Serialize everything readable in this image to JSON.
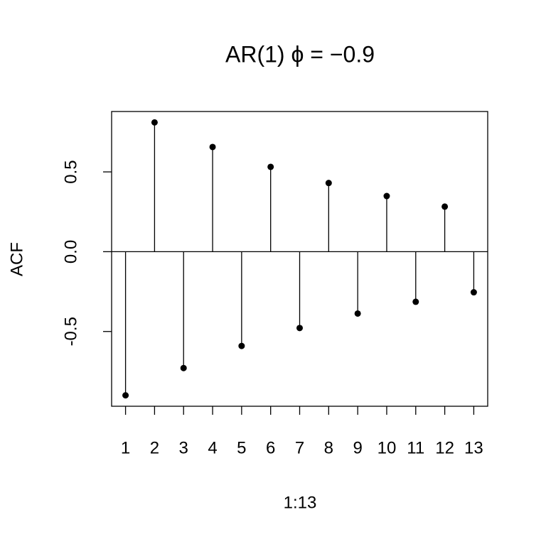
{
  "chart_data": {
    "type": "stem",
    "title": "AR(1)   ϕ = −0.9",
    "xlabel": "1:13",
    "ylabel": "ACF",
    "x": [
      1,
      2,
      3,
      4,
      5,
      6,
      7,
      8,
      9,
      10,
      11,
      12,
      13
    ],
    "values": [
      -0.9,
      0.81,
      -0.729,
      0.6561,
      -0.59049,
      0.531441,
      -0.4782969,
      0.43046721,
      -0.387420489,
      0.3486784401,
      -0.31381059609,
      0.282429536481,
      -0.2541865828329
    ],
    "color": "#000000",
    "xlim": [
      0.52,
      13.48
    ],
    "xticks": [
      1,
      2,
      3,
      4,
      5,
      6,
      7,
      8,
      9,
      10,
      11,
      12,
      13
    ],
    "ylim": [
      -0.9684,
      0.8784
    ],
    "yticks": [
      -0.5,
      {
        "value": 0,
        "label": "0.0"
      },
      0.5
    ]
  }
}
